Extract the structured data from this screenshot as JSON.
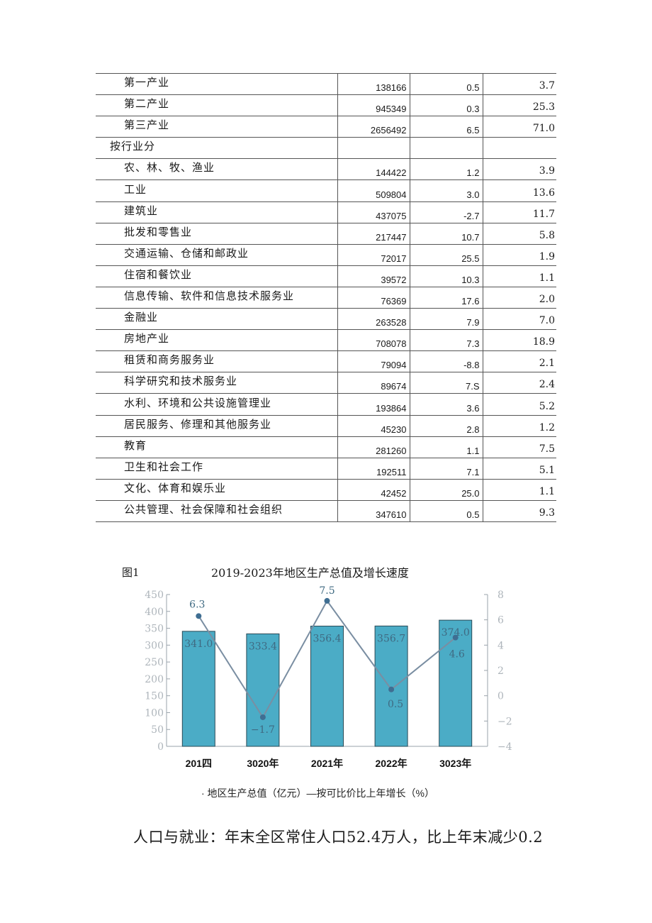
{
  "table": {
    "rows": [
      {
        "name": "第一产业",
        "value": "138166",
        "growth": "0.5",
        "share": "3.7",
        "group": false
      },
      {
        "name": "第二产业",
        "value": "945349",
        "growth": "0.3",
        "share": "25.3",
        "group": false
      },
      {
        "name": "第三产业",
        "value": "2656492",
        "growth": "6.5",
        "share": "71.0",
        "group": false
      },
      {
        "name": "按行业分",
        "value": "",
        "growth": "",
        "share": "",
        "group": true
      },
      {
        "name": "农、林、牧、渔业",
        "value": "144422",
        "growth": "1.2",
        "share": "3.9",
        "group": false
      },
      {
        "name": "工业",
        "value": "509804",
        "growth": "3.0",
        "share": "13.6",
        "group": false
      },
      {
        "name": "建筑业",
        "value": "437075",
        "growth": "-2.7",
        "share": "11.7",
        "group": false
      },
      {
        "name": "批发和零售业",
        "value": "217447",
        "growth": "10.7",
        "share": "5.8",
        "group": false
      },
      {
        "name": "交通运输、仓储和邮政业",
        "value": "72017",
        "growth": "25.5",
        "share": "1.9",
        "group": false
      },
      {
        "name": "住宿和餐饮业",
        "value": "39572",
        "growth": "10.3",
        "share": "1.1",
        "group": false
      },
      {
        "name": "信息传输、软件和信息技术服务业",
        "value": "76369",
        "growth": "17.6",
        "share": "2.0",
        "group": false
      },
      {
        "name": "金融业",
        "value": "263528",
        "growth": "7.9",
        "share": "7.0",
        "group": false
      },
      {
        "name": "房地产业",
        "value": "708078",
        "growth": "7.3",
        "share": "18.9",
        "group": false
      },
      {
        "name": "租赁和商务服务业",
        "value": "79094",
        "growth": "-8.8",
        "share": "2.1",
        "group": false
      },
      {
        "name": "科学研究和技术服务业",
        "value": "89674",
        "growth": "7.S",
        "share": "2.4",
        "group": false
      },
      {
        "name": "水利、环境和公共设施管理业",
        "value": "193864",
        "growth": "3.6",
        "share": "5.2",
        "group": false
      },
      {
        "name": "居民服务、修理和其他服务业",
        "value": "45230",
        "growth": "2.8",
        "share": "1.2",
        "group": false
      },
      {
        "name": "教育",
        "value": "281260",
        "growth": "1.1",
        "share": "7.5",
        "group": false
      },
      {
        "name": "卫生和社会工作",
        "value": "192511",
        "growth": "7.1",
        "share": "5.1",
        "group": false
      },
      {
        "name": "文化、体育和娱乐业",
        "value": "42452",
        "growth": "25.0",
        "share": "1.1",
        "group": false
      },
      {
        "name": "公共管理、社会保障和社会组织",
        "value": "347610",
        "growth": "0.5",
        "share": "9.3",
        "group": false
      }
    ]
  },
  "figure": {
    "label": "图1",
    "title": "2019-2023年地区生产总值及增长速度",
    "legend": "· 地区生产总值（亿元）—按可比价比上年增长（%）"
  },
  "chart_data": {
    "type": "bar",
    "categories": [
      "201四",
      "3020年",
      "2021年",
      "2022年",
      "3023年"
    ],
    "series": [
      {
        "name": "地区生产总值（亿元）",
        "type": "bar",
        "axis": "left",
        "values": [
          341.0,
          333.4,
          356.4,
          356.7,
          374.0
        ],
        "labels": [
          "341.0",
          "333.4",
          "356.4",
          "356.7",
          "374.0"
        ]
      },
      {
        "name": "按可比价比上年增长（%）",
        "type": "line",
        "axis": "right",
        "values": [
          6.3,
          -1.7,
          7.5,
          0.5,
          4.6
        ],
        "labels": [
          "6.3",
          "−1.7",
          "7.5",
          "0.5",
          "4.6"
        ]
      }
    ],
    "y_left": {
      "min": 0,
      "max": 450,
      "ticks": [
        "0",
        "50",
        "100",
        "150",
        "200",
        "250",
        "300",
        "350",
        "400",
        "450"
      ]
    },
    "y_right": {
      "min": -4,
      "max": 8,
      "ticks": [
        "−4",
        "−2",
        "0",
        "2",
        "4",
        "6",
        "8"
      ]
    },
    "grid": false,
    "legend_position": "bottom",
    "colors": {
      "bar": "#4bacc6",
      "bar_edge": "#2a4a56",
      "line": "#7a8ea2",
      "marker": "#3f6e92",
      "axis": "#9aa3ab",
      "tick_text": "#aeb5bb",
      "bar_label": "#3f6a82",
      "category_text": "#111111"
    }
  },
  "footer_text": "人口与就业：年末全区常住人口52.4万人，比上年末减少0.2"
}
